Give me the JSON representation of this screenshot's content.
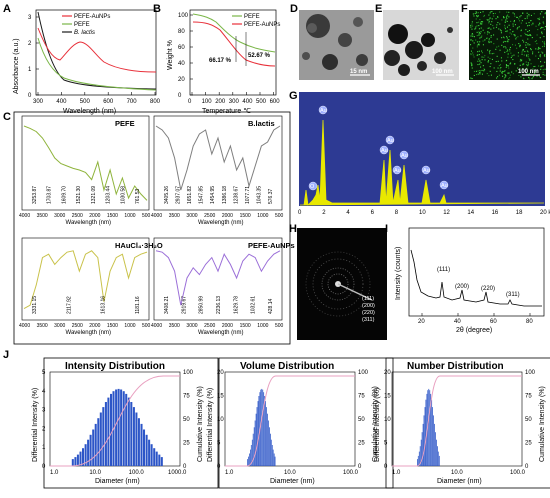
{
  "panels": {
    "A": "A",
    "B": "B",
    "C": "C",
    "D": "D",
    "E": "E",
    "F": "F",
    "G": "G",
    "H": "H",
    "I": "I",
    "J": "J"
  },
  "panel_a": {
    "ylabel": "Absorbance (a.u.)",
    "xlabel": "Wavelength (nm)",
    "legend": [
      "PEFE-AuNPs",
      "PEFE",
      "B. lactis"
    ],
    "xticks": [
      "300",
      "400",
      "500",
      "600",
      "700",
      "800"
    ],
    "yticks": [
      "0",
      "1",
      "2",
      "3"
    ],
    "colors": [
      "#e8303a",
      "#7ab648",
      "#1a1a1a"
    ]
  },
  "panel_b": {
    "ylabel": "Weight %",
    "xlabel": "Temperature ℃",
    "legend": [
      "PEFE",
      "PEFE-AuNPs"
    ],
    "xticks": [
      "0",
      "100",
      "200",
      "300",
      "400",
      "500",
      "600"
    ],
    "yticks": [
      "0",
      "20",
      "40",
      "60",
      "80",
      "100"
    ],
    "annot1": "66.17 %",
    "annot2": "52.67 %"
  },
  "panel_c": {
    "subplots": [
      {
        "title": "PEFE",
        "color": "#8fb43c",
        "peaks": [
          "3253.87",
          "1703.87",
          "1609.70",
          "1521.30",
          "1321.09",
          "1203.44",
          "1030.58",
          "761.53"
        ]
      },
      {
        "title": "B.lactis",
        "color": "#7f7f7f",
        "peaks": [
          "3405.26",
          "2937.07",
          "1651.82",
          "1547.85",
          "1454.95",
          "1386.18",
          "1238.67",
          "1077.71",
          "1043.35",
          "576.37"
        ]
      },
      {
        "title": "HAuCl₄·3H₂O",
        "color": "#c9c24a",
        "peaks": [
          "3331.15",
          "2117.92",
          "1613.16",
          "1181.16"
        ]
      },
      {
        "title": "PEFE-AuNPs",
        "color": "#9b6fd8",
        "peaks": [
          "3408.21",
          "2919.67",
          "2850.99",
          "2236.13",
          "1629.78",
          "1032.61",
          "428.14"
        ]
      }
    ],
    "xticks": [
      "4000",
      "3500",
      "3000",
      "2500",
      "2000",
      "1500",
      "1000",
      "500"
    ],
    "xlabel": "Wavelength (nm)"
  },
  "panel_d": {
    "scale": "15 nm"
  },
  "panel_e": {
    "scale": "100 nm"
  },
  "panel_f": {
    "scale": "100 nm"
  },
  "panel_g": {
    "peaks": [
      "O",
      "Au",
      "Au",
      "Au",
      "Au",
      "Au",
      "Au",
      "Au"
    ],
    "xticks": [
      "0",
      "2",
      "4",
      "6",
      "8",
      "10",
      "12",
      "14",
      "16",
      "18",
      "20 ke V"
    ]
  },
  "panel_h": {
    "rings": [
      "(111)",
      "(200)",
      "(220)",
      "(311)"
    ]
  },
  "panel_i": {
    "ylabel": "Intensity (counts)",
    "xlabel": "2θ (degree)",
    "peaks": [
      "(111)",
      "(200)",
      "(220)",
      "(311)"
    ],
    "xticks": [
      "20",
      "40",
      "60",
      "80"
    ]
  },
  "panel_j": [
    {
      "title": "Intensity Distribution",
      "ylabel": "Differential Intensity (%)",
      "y2label": "Cumulative Intensity (%)",
      "xlabel": "Diameter (nm)",
      "xticks": [
        "1.0",
        "10.0",
        "100.0",
        "1000.0"
      ],
      "yticks": [
        "0",
        "1",
        "2",
        "3",
        "4",
        "5"
      ],
      "y2ticks": [
        "0",
        "25",
        "50",
        "75",
        "100"
      ]
    },
    {
      "title": "Volume Distribution",
      "ylabel": "Differential Intensity (%)",
      "y2label": "Cumulative Intensity (%)",
      "xlabel": "Diameter (nm)",
      "xticks": [
        "1.0",
        "10.0",
        "100.0"
      ],
      "yticks": [
        "0",
        "5",
        "10",
        "15",
        "20"
      ],
      "y2ticks": [
        "0",
        "25",
        "50",
        "75",
        "100"
      ]
    },
    {
      "title": "Number Distribution",
      "ylabel": "Differential Intensity (%)",
      "y2label": "Cumulative Intensity (%)",
      "xlabel": "Diameter (nm)",
      "xticks": [
        "1.0",
        "10.0",
        "100.0"
      ],
      "yticks": [
        "0",
        "5",
        "10",
        "15",
        "20"
      ],
      "y2ticks": [
        "0",
        "25",
        "50",
        "75",
        "100"
      ]
    }
  ]
}
